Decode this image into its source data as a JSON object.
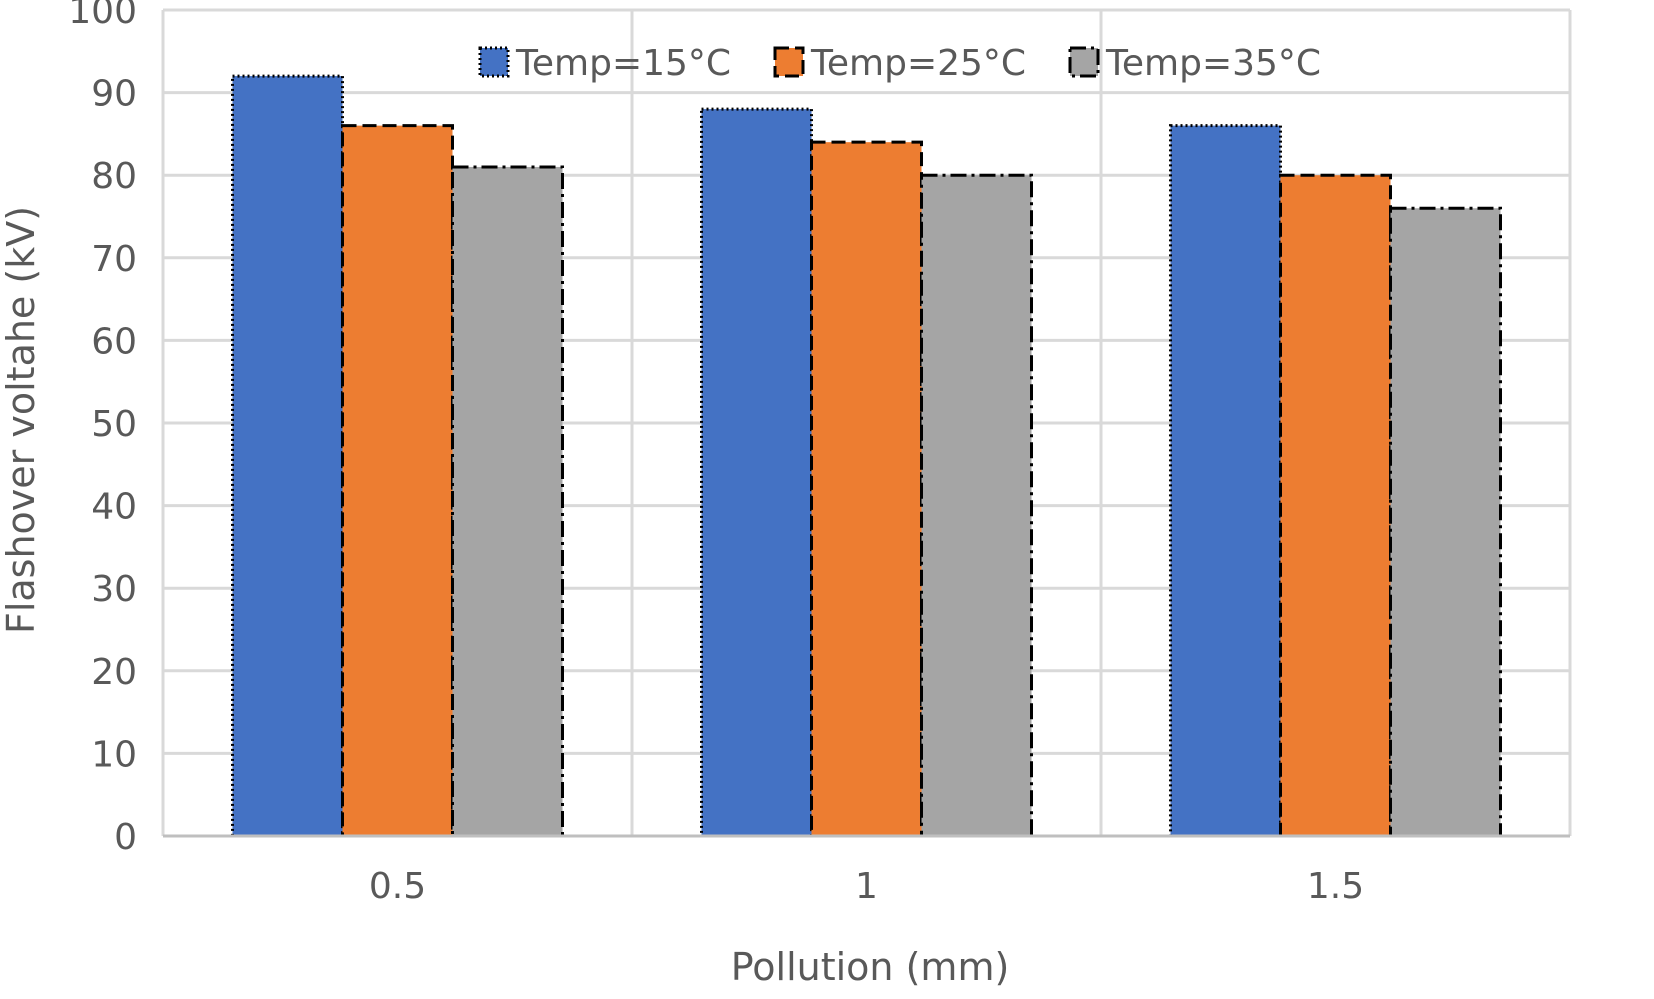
{
  "chart_data": {
    "type": "bar",
    "title": "",
    "xlabel": "Pollution (mm)",
    "ylabel": "Flashover voltahe (kV)",
    "categories": [
      "0.5",
      "1",
      "1.5"
    ],
    "ylim": [
      0,
      100
    ],
    "yticks": [
      "0",
      "10",
      "20",
      "30",
      "40",
      "50",
      "60",
      "70",
      "80",
      "90",
      "100"
    ],
    "grid": true,
    "legend_position": "top-right",
    "series": [
      {
        "name": "Temp=15°C",
        "values": [
          92,
          88,
          86
        ],
        "color": "#4472C4",
        "border": "dotted"
      },
      {
        "name": "Temp=25°C",
        "values": [
          86,
          84,
          80
        ],
        "color": "#ED7D31",
        "border": "dashed"
      },
      {
        "name": "Temp=35°C",
        "values": [
          81,
          80,
          76
        ],
        "color": "#A5A5A5",
        "border": "dash-dot"
      }
    ]
  }
}
